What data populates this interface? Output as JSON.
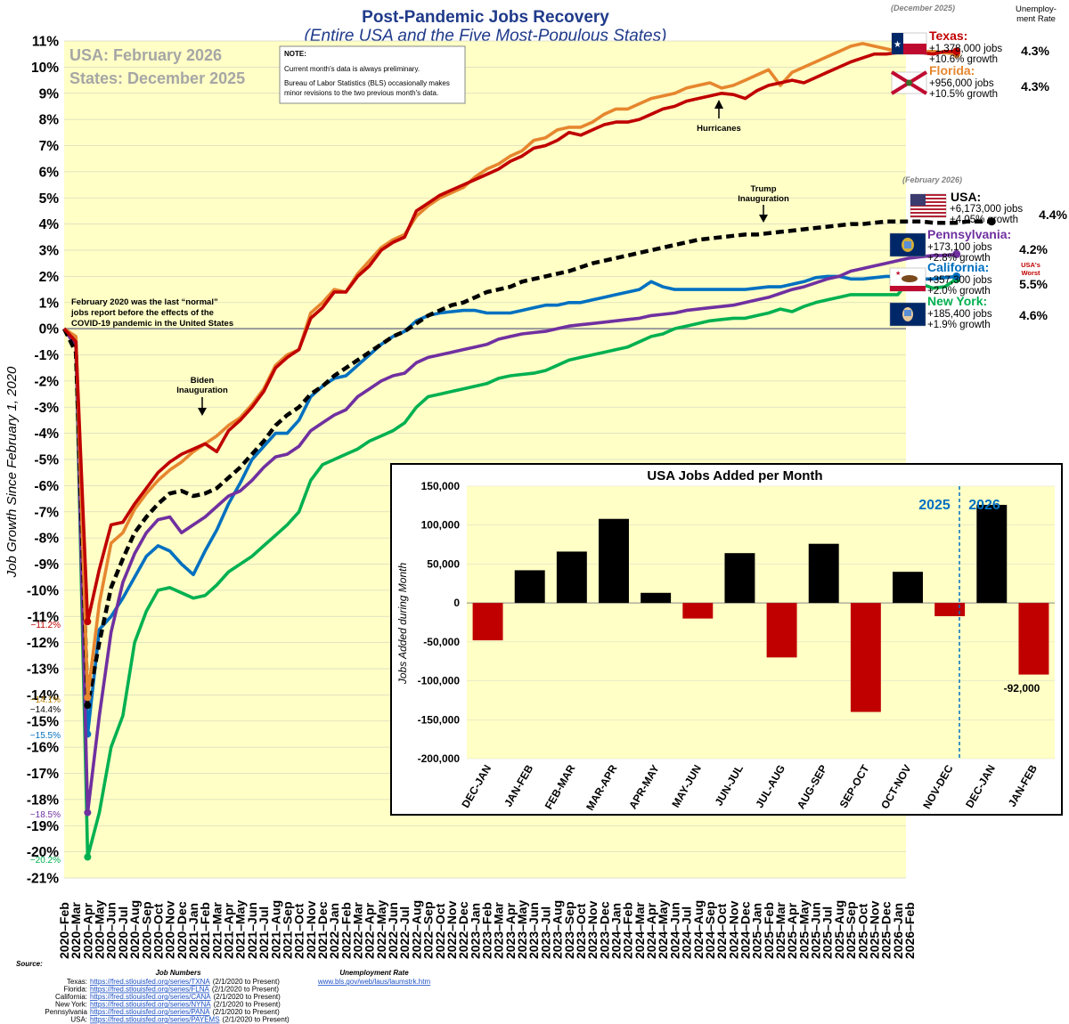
{
  "header": {
    "title": "Post-Pandemic Jobs Recovery",
    "subtitle": "(Entire USA and the Five Most-Populous States)",
    "period_usa": "USA: February 2026",
    "period_states": "States: December 2025"
  },
  "note": {
    "heading": "NOTE:",
    "line1": "Current month's data is always preliminary.",
    "line2": "Bureau of Labor Statistics (BLS) occasionally makes",
    "line3": "minor revisions to the two previous month's data."
  },
  "annotations": {
    "pre_covid_line1": "February 2020 was the last “normal”",
    "pre_covid_line2": "jobs report before the effects of the",
    "pre_covid_line3": "COVID-19 pandemic in the United States",
    "biden_1": "Biden",
    "biden_2": "Inauguration",
    "trump_1": "Trump",
    "trump_2": "Inauguration",
    "hurricanes": "Hurricanes"
  },
  "legend": {
    "states_period": "(December 2025)",
    "usa_period": "(February 2026)",
    "unemp_header_1": "Unemploy-",
    "unemp_header_2": "ment Rate",
    "usa_worst_1": "USA's",
    "usa_worst_2": "Worst",
    "entries": [
      {
        "name": "Texas:",
        "jobs": "+1,378,000 jobs",
        "growth": "+10.6% growth",
        "rate": "4.3%",
        "color": "#c00000"
      },
      {
        "name": "Florida:",
        "jobs": "+956,000 jobs",
        "growth": "+10.5% growth",
        "rate": "4.3%",
        "color": "#e6862f"
      },
      {
        "name": "USA:",
        "jobs": "+6,173,000 jobs",
        "growth": "+4.05% growth",
        "rate": "4.4%",
        "color": "#000000"
      },
      {
        "name": "Pennsylvania:",
        "jobs": "+173,100 jobs",
        "growth": "+2.8% growth",
        "rate": "4.2%",
        "color": "#7030a0"
      },
      {
        "name": "California:",
        "jobs": "+357,300 jobs",
        "growth": "+2.0% growth",
        "rate": "5.5%",
        "color": "#0070c0"
      },
      {
        "name": "New York:",
        "jobs": "+185,400 jobs",
        "growth": "+1.9% growth",
        "rate": "4.6%",
        "color": "#00b050"
      }
    ]
  },
  "trough_labels": {
    "texas": "−11.2%",
    "florida": "−14.1%",
    "usa": "−14.4%",
    "california": "−15.5%",
    "pennsylvania": "−18.5%",
    "new_york": "−20.2%"
  },
  "sources": {
    "title": "Source:",
    "job_numbers_header": "Job Numbers",
    "unemployment_header": "Unemployment Rate",
    "unemployment_url": "www.bls.gov/web/laus/laumstrk.htm",
    "items": [
      {
        "label": "Texas:",
        "url": "https://fred.stlouisfed.org/series/TXNA",
        "range": "(2/1/2020 to Present)"
      },
      {
        "label": "Florida:",
        "url": "https://fred.stlouisfed.org/series/FLNA",
        "range": "(2/1/2020 to Present)"
      },
      {
        "label": "California:",
        "url": "https://fred.stlouisfed.org/series/CANA",
        "range": "(2/1/2020 to Present)"
      },
      {
        "label": "New York:",
        "url": "https://fred.stlouisfed.org/series/NYNA",
        "range": "(2/1/2020 to Present)"
      },
      {
        "label": "Pennsylvania",
        "url": "https://fred.stlouisfed.org/series/PANA",
        "range": "(2/1/2020 to Present)"
      },
      {
        "label": "USA:",
        "url": "https://fred.stlouisfed.org/series/PAYEMS",
        "range": "(2/1/2020 to Present)"
      }
    ]
  },
  "chart_data": [
    {
      "type": "line",
      "title": "Post-Pandemic Jobs Recovery",
      "ylabel": "Job Growth Since February 1, 2020",
      "ylim": [
        -21,
        11
      ],
      "y_ticks": [
        "11%",
        "10%",
        "9%",
        "8%",
        "7%",
        "6%",
        "5%",
        "4%",
        "3%",
        "2%",
        "1%",
        "0%",
        "-1%",
        "-2%",
        "-3%",
        "-4%",
        "-5%",
        "-6%",
        "-7%",
        "-8%",
        "-9%",
        "-10%",
        "-11%",
        "-12%",
        "-13%",
        "-14%",
        "-15%",
        "-16%",
        "-17%",
        "-18%",
        "-19%",
        "-20%",
        "-21%"
      ],
      "x_start": "2020-Feb",
      "x_end": "2026-Feb",
      "series": [
        {
          "name": "Texas",
          "color": "#c00000",
          "style": "solid",
          "values": [
            0,
            -0.5,
            -11.2,
            -9.2,
            -7.5,
            -7.4,
            -6.7,
            -6.1,
            -5.5,
            -5.1,
            -4.8,
            -4.6,
            -4.4,
            -4.7,
            -3.9,
            -3.5,
            -3.0,
            -2.4,
            -1.5,
            -1.1,
            -0.8,
            0.4,
            0.8,
            1.4,
            1.4,
            2.0,
            2.4,
            3.0,
            3.3,
            3.5,
            4.5,
            4.8,
            5.1,
            5.3,
            5.5,
            5.7,
            5.9,
            6.1,
            6.4,
            6.6,
            6.9,
            7.0,
            7.2,
            7.5,
            7.4,
            7.6,
            7.8,
            7.9,
            7.9,
            8.0,
            8.2,
            8.4,
            8.5,
            8.7,
            8.8,
            8.9,
            9.0,
            8.95,
            8.8,
            9.1,
            9.3,
            9.4,
            9.5,
            9.4,
            9.6,
            9.8,
            10.0,
            10.2,
            10.35,
            10.5,
            10.5,
            10.55,
            10.6,
            10.55,
            10.5,
            10.6,
            10.6
          ]
        },
        {
          "name": "Florida",
          "color": "#e6862f",
          "style": "solid",
          "values": [
            0,
            -0.3,
            -14.1,
            -10.5,
            -8.2,
            -7.8,
            -6.9,
            -6.3,
            -5.8,
            -5.4,
            -5.1,
            -4.7,
            -4.4,
            -4.1,
            -3.7,
            -3.4,
            -2.9,
            -2.3,
            -1.4,
            -1.0,
            -0.8,
            0.6,
            1.0,
            1.5,
            1.4,
            2.1,
            2.6,
            3.1,
            3.4,
            3.6,
            4.3,
            4.7,
            5.0,
            5.2,
            5.4,
            5.8,
            6.1,
            6.3,
            6.6,
            6.8,
            7.2,
            7.3,
            7.6,
            7.7,
            7.7,
            7.9,
            8.2,
            8.4,
            8.4,
            8.6,
            8.8,
            8.9,
            9.0,
            9.2,
            9.3,
            9.4,
            9.2,
            9.3,
            9.5,
            9.7,
            9.9,
            9.3,
            9.8,
            10.0,
            10.2,
            10.4,
            10.6,
            10.8,
            10.9,
            10.8,
            10.7,
            10.6,
            10.6,
            10.6,
            10.6,
            10.55,
            10.5
          ]
        },
        {
          "name": "USA",
          "color": "#000000",
          "style": "dashed",
          "values": [
            0,
            -0.9,
            -14.4,
            -12.0,
            -9.9,
            -8.8,
            -7.8,
            -7.2,
            -6.7,
            -6.3,
            -6.2,
            -6.4,
            -6.3,
            -6.1,
            -5.7,
            -5.3,
            -4.8,
            -4.3,
            -3.7,
            -3.3,
            -3.0,
            -2.5,
            -2.2,
            -1.8,
            -1.5,
            -1.2,
            -0.9,
            -0.6,
            -0.3,
            -0.1,
            0.2,
            0.5,
            0.7,
            0.9,
            1.0,
            1.2,
            1.4,
            1.5,
            1.6,
            1.8,
            1.9,
            2.0,
            2.1,
            2.2,
            2.35,
            2.5,
            2.6,
            2.7,
            2.8,
            2.9,
            3.0,
            3.1,
            3.2,
            3.3,
            3.4,
            3.45,
            3.5,
            3.55,
            3.6,
            3.6,
            3.65,
            3.7,
            3.75,
            3.8,
            3.85,
            3.9,
            3.95,
            4.0,
            4.0,
            4.05,
            4.1,
            4.1,
            4.1,
            4.1,
            4.05,
            4.05,
            4.05,
            4.1,
            4.1,
            4.1
          ]
        },
        {
          "name": "Pennsylvania",
          "color": "#7030a0",
          "style": "solid",
          "values": [
            0,
            -0.7,
            -18.5,
            -14.8,
            -11.6,
            -9.7,
            -8.6,
            -7.8,
            -7.3,
            -7.2,
            -7.8,
            -7.5,
            -7.2,
            -6.8,
            -6.4,
            -6.2,
            -5.8,
            -5.3,
            -4.9,
            -4.8,
            -4.5,
            -3.9,
            -3.6,
            -3.3,
            -3.1,
            -2.6,
            -2.3,
            -2.0,
            -1.8,
            -1.7,
            -1.3,
            -1.1,
            -1.0,
            -0.9,
            -0.8,
            -0.7,
            -0.6,
            -0.4,
            -0.3,
            -0.2,
            -0.15,
            -0.1,
            0.0,
            0.1,
            0.15,
            0.2,
            0.25,
            0.3,
            0.35,
            0.4,
            0.5,
            0.55,
            0.6,
            0.7,
            0.75,
            0.8,
            0.85,
            0.9,
            1.0,
            1.1,
            1.2,
            1.35,
            1.5,
            1.6,
            1.75,
            1.9,
            2.0,
            2.2,
            2.3,
            2.4,
            2.5,
            2.6,
            2.7,
            2.75,
            2.8,
            2.8,
            2.85
          ]
        },
        {
          "name": "California",
          "color": "#0070c0",
          "style": "solid",
          "values": [
            0,
            -0.4,
            -15.5,
            -11.5,
            -11.0,
            -10.3,
            -9.5,
            -8.7,
            -8.3,
            -8.5,
            -9.0,
            -9.4,
            -8.5,
            -7.7,
            -6.7,
            -5.9,
            -5.0,
            -4.5,
            -4.0,
            -4.0,
            -3.5,
            -2.6,
            -2.2,
            -1.9,
            -1.8,
            -1.4,
            -1.0,
            -0.6,
            -0.3,
            -0.1,
            0.3,
            0.5,
            0.6,
            0.65,
            0.7,
            0.7,
            0.6,
            0.6,
            0.6,
            0.7,
            0.8,
            0.9,
            0.9,
            1.0,
            1.0,
            1.1,
            1.2,
            1.3,
            1.4,
            1.5,
            1.8,
            1.6,
            1.5,
            1.5,
            1.5,
            1.5,
            1.5,
            1.5,
            1.5,
            1.55,
            1.6,
            1.6,
            1.7,
            1.8,
            1.95,
            2.0,
            2.0,
            1.9,
            1.9,
            1.95,
            2.0,
            2.0,
            1.95,
            1.9,
            1.9,
            1.95,
            2.0
          ]
        },
        {
          "name": "New York",
          "color": "#00b050",
          "style": "solid",
          "values": [
            0,
            -0.6,
            -20.2,
            -18.5,
            -16.0,
            -14.8,
            -12.0,
            -10.8,
            -10.0,
            -9.9,
            -10.1,
            -10.3,
            -10.2,
            -9.8,
            -9.3,
            -9.0,
            -8.7,
            -8.3,
            -7.9,
            -7.5,
            -7.0,
            -5.8,
            -5.2,
            -5.0,
            -4.8,
            -4.6,
            -4.3,
            -4.1,
            -3.9,
            -3.6,
            -3.0,
            -2.6,
            -2.5,
            -2.4,
            -2.3,
            -2.2,
            -2.1,
            -1.9,
            -1.8,
            -1.75,
            -1.7,
            -1.6,
            -1.4,
            -1.2,
            -1.1,
            -1.0,
            -0.9,
            -0.8,
            -0.7,
            -0.5,
            -0.3,
            -0.2,
            0.0,
            0.1,
            0.2,
            0.3,
            0.35,
            0.4,
            0.4,
            0.5,
            0.6,
            0.75,
            0.65,
            0.85,
            1.0,
            1.1,
            1.2,
            1.3,
            1.3,
            1.3,
            1.3,
            1.3,
            1.85,
            1.7,
            1.55,
            1.6,
            1.9
          ]
        }
      ]
    },
    {
      "type": "bar",
      "title": "USA Jobs Added per Month",
      "ylabel": "Jobs Added during Month",
      "ylim": [
        -200000,
        150000
      ],
      "y_ticks": [
        "150,000",
        "100,000",
        "50,000",
        "0",
        "-50,000",
        "-100,000",
        "-150,000",
        "-200,000"
      ],
      "categories": [
        "DEC-JAN",
        "JAN-FEB",
        "FEB-MAR",
        "MAR-APR",
        "APR-MAY",
        "MAY-JUN",
        "JUN-JUL",
        "JUL-AUG",
        "AUG-SEP",
        "SEP-OCT",
        "OCT-NOV",
        "NOV-DEC",
        "DEC-JAN",
        "JAN-FEB"
      ],
      "values": [
        -48000,
        42000,
        66000,
        108000,
        13000,
        -20000,
        64000,
        -70000,
        76000,
        -140000,
        40000,
        -17000,
        126000,
        -92000
      ],
      "year_labels": [
        "2025",
        "2026"
      ],
      "data_label": "-92,000",
      "positive_color": "#000000",
      "negative_color": "#c00000"
    }
  ]
}
